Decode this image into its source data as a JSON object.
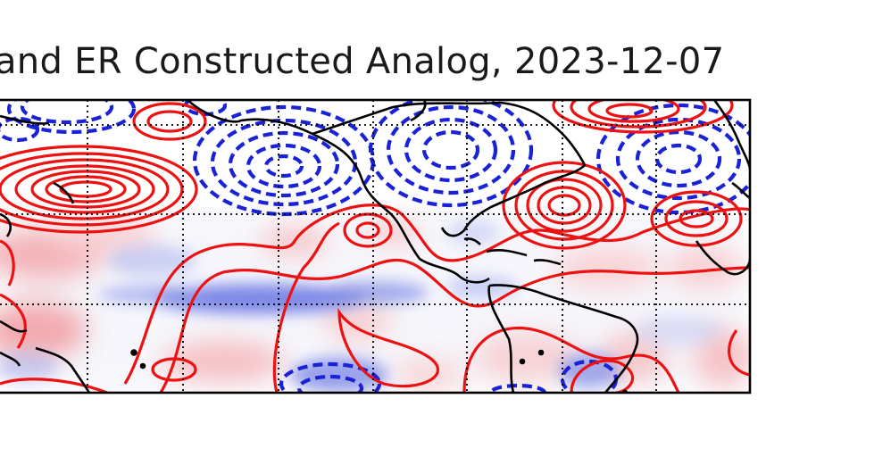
{
  "figure": {
    "title": "and ER Constructed Analog, 2023-12-07"
  },
  "map": {
    "type": "contour-map",
    "shading": {
      "positive_color": "#e0242c",
      "negative_color": "#2a3fd6"
    },
    "positive_contour_color": "#ee1111",
    "negative_contour_color": "#1a22d8",
    "negative_contour_style": "dashed",
    "coastline_color": "#000000",
    "gridlines": "dotted"
  }
}
